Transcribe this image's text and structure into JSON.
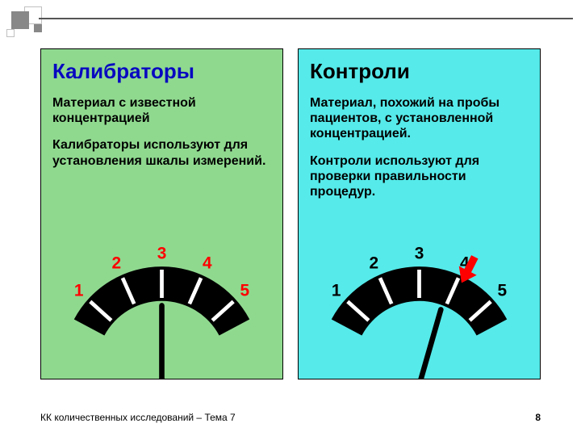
{
  "footer": {
    "text": "КК количественных исследований – Тема 7",
    "page": "8"
  },
  "left": {
    "bg": "#8fd98f",
    "title": "Калибраторы",
    "title_color": "#0808c0",
    "body_color": "#000000",
    "p1": "Материал с известной концентрацией",
    "p2": "Калибраторы используют для установления шкалы измерений.",
    "gauge": {
      "labels": [
        "1",
        "2",
        "3",
        "4",
        "5"
      ],
      "label_color": "#ff0000",
      "tick_color": "#ffffff",
      "arc_color": "#000000",
      "needle_angle_deg": 0,
      "needle_color": "#000000",
      "show_red_arrow": false
    }
  },
  "right": {
    "bg": "#56eaea",
    "title": "Контроли",
    "title_color": "#000000",
    "body_color": "#000000",
    "p1": "Материал, похожий на пробы пациентов, с установленной концентрацией.",
    "p2": "Контроли используют для проверки правильности процедур.",
    "gauge": {
      "labels": [
        "1",
        "2",
        "3",
        "4",
        "5"
      ],
      "label_color": "#000000",
      "tick_color": "#ffffff",
      "arc_color": "#000000",
      "needle_angle_deg": 21,
      "needle_color": "#000000",
      "show_red_arrow": true,
      "red_arrow_slot": 4
    }
  }
}
